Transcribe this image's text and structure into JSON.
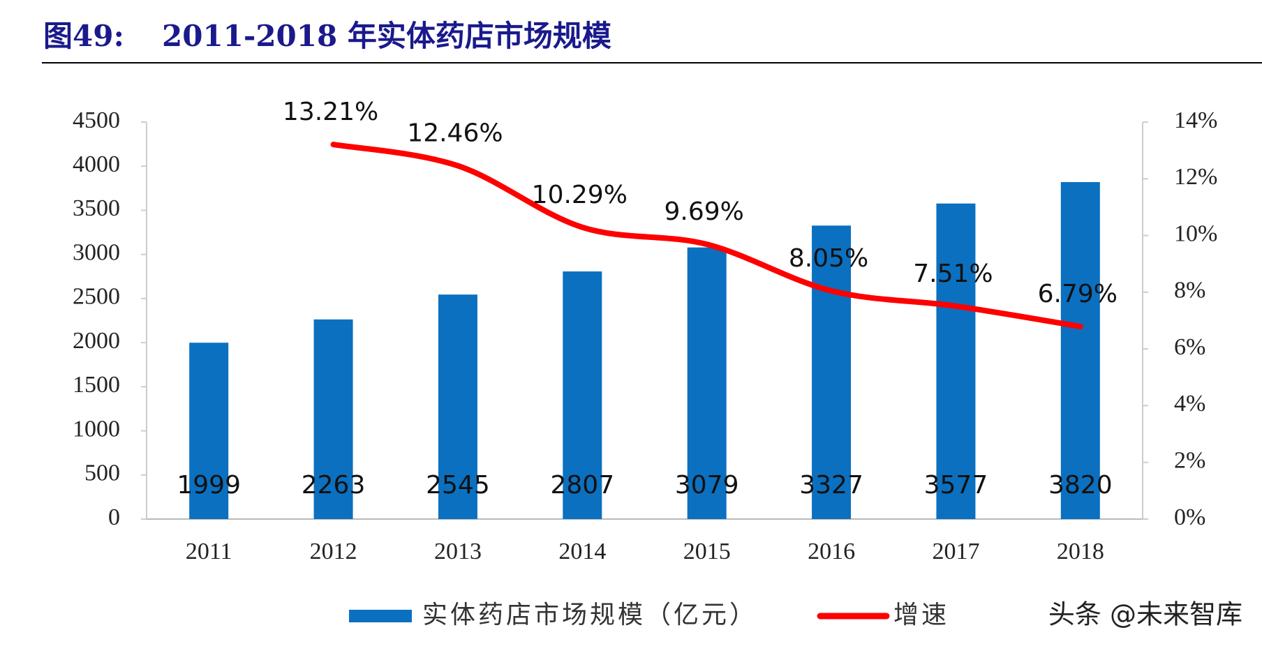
{
  "chart_data": {
    "type": "bar_line",
    "figure_label": "图49:",
    "title": "2011-2018 年实体药店市场规模",
    "categories": [
      "2011",
      "2012",
      "2013",
      "2014",
      "2015",
      "2016",
      "2017",
      "2018"
    ],
    "series": [
      {
        "name": "实体药店市场规模（亿元）",
        "type": "bar",
        "color": "#0b70c0",
        "values": [
          1999,
          2263,
          2545,
          2807,
          3079,
          3327,
          3577,
          3820
        ]
      },
      {
        "name": "增速",
        "type": "line",
        "axis": "y2",
        "color": "#ff0000",
        "values": [
          null,
          13.21,
          12.46,
          10.29,
          9.69,
          8.05,
          7.51,
          6.79
        ],
        "value_labels": [
          null,
          "13.21%",
          "12.46%",
          "10.29%",
          "9.69%",
          "8.05%",
          "7.51%",
          "6.79%"
        ]
      }
    ],
    "ylim": [
      0,
      4500
    ],
    "yticks": [
      0,
      500,
      1000,
      1500,
      2000,
      2500,
      3000,
      3500,
      4000,
      4500
    ],
    "y2lim": [
      0,
      14
    ],
    "y2ticks": [
      {
        "value": 0,
        "label": "0%"
      },
      {
        "value": 2,
        "label": "2%"
      },
      {
        "value": 4,
        "label": "4%"
      },
      {
        "value": 6,
        "label": "6%"
      },
      {
        "value": 8,
        "label": "8%"
      },
      {
        "value": 10,
        "label": "10%"
      },
      {
        "value": 12,
        "label": "12%"
      },
      {
        "value": 14,
        "label": "14%"
      }
    ],
    "watermark": "头条 @未来智库"
  }
}
